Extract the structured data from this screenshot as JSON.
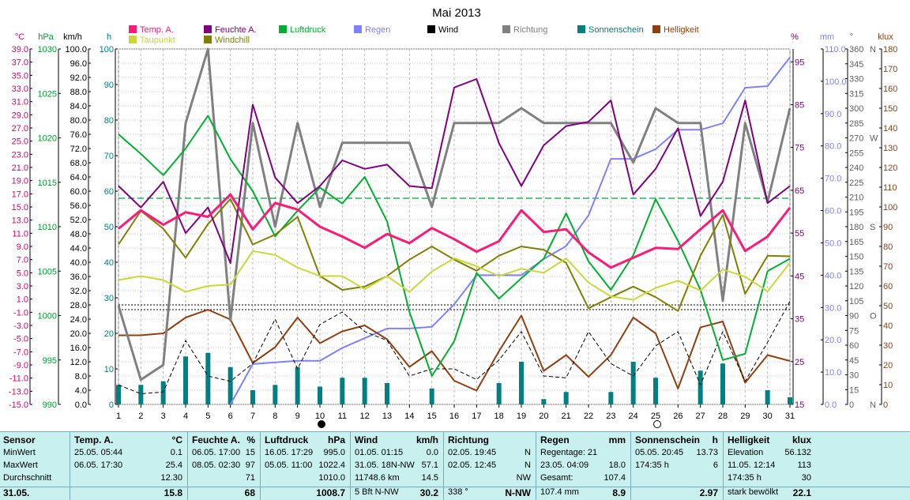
{
  "chart_data": {
    "type": "line",
    "title": "Mai 2013",
    "x": [
      1,
      2,
      3,
      4,
      5,
      6,
      7,
      8,
      9,
      10,
      11,
      12,
      13,
      14,
      15,
      16,
      17,
      18,
      19,
      20,
      21,
      22,
      23,
      24,
      25,
      26,
      27,
      28,
      29,
      30,
      31
    ],
    "xlim": [
      1,
      31
    ],
    "reference_line": 58,
    "series": [
      {
        "name": "Temp. A.",
        "color": "#ff1a75",
        "axis": "°C",
        "width": 3,
        "values": [
          11.7,
          14.5,
          12.3,
          14.2,
          13.5,
          16.9,
          11.6,
          15.6,
          14.6,
          12.0,
          10.5,
          8.8,
          10.9,
          9.5,
          11.8,
          10.1,
          8.2,
          9.8,
          14.5,
          11.2,
          11.6,
          8.1,
          5.8,
          7.3,
          8.8,
          8.6,
          11.6,
          14.5,
          8.3,
          10.5,
          14.9
        ]
      },
      {
        "name": "Feuchte A.",
        "color": "#800080",
        "axis": "%",
        "width": 2,
        "values": [
          66,
          61,
          67,
          55,
          61,
          48,
          85,
          68,
          62,
          66,
          72,
          70,
          71,
          66,
          65.5,
          89,
          91,
          76,
          66,
          75.5,
          80,
          81,
          86,
          64,
          70,
          79.5,
          59,
          67,
          86,
          62,
          66
        ]
      },
      {
        "name": "Luftdruck",
        "color": "#00b030",
        "axis": "hPa",
        "width": 2,
        "values": [
          1020.4,
          1018.2,
          1015.8,
          1018.8,
          1022.5,
          1017.6,
          1014.0,
          1008.9,
          1011.8,
          1014.4,
          1012.6,
          1015.6,
          1010.6,
          1000.4,
          993.2,
          997.1,
          1004.8,
          1001.9,
          1004.2,
          1006.4,
          1011.5,
          1006.1,
          1002.9,
          1006.8,
          1013.1,
          1008.4,
          1002.9,
          995.0,
          995.7,
          1005.0,
          1006.4
        ]
      },
      {
        "name": "Regen",
        "color": "#8080ff",
        "axis": "mm",
        "width": 2,
        "values": [
          null,
          null,
          null,
          null,
          null,
          0,
          12.5,
          13,
          13.5,
          13.5,
          17.5,
          20.5,
          23.5,
          23.5,
          24,
          31,
          40,
          40,
          40,
          45,
          49,
          58.5,
          76,
          76,
          79,
          85,
          85,
          87,
          98,
          98.5,
          107.4
        ]
      },
      {
        "name": "Richtung",
        "color": "#808080",
        "axis": "°",
        "width": 3,
        "values": [
          100,
          25,
          40,
          285,
          360,
          85,
          285,
          180,
          285,
          200,
          265,
          265,
          265,
          265,
          200,
          285,
          285,
          285,
          300,
          285,
          285,
          285,
          285,
          245,
          300,
          285,
          285,
          105,
          285,
          205,
          300
        ]
      },
      {
        "name": "Taupunkt",
        "color": "#c8d838",
        "axis": "°C",
        "width": 2,
        "values": [
          3.9,
          4.5,
          3.9,
          2.1,
          3.0,
          3.2,
          8.3,
          7.7,
          5.8,
          4.5,
          4.5,
          2.5,
          4.5,
          2.1,
          5.2,
          7.2,
          6.0,
          4.5,
          5.6,
          5.0,
          7.2,
          3.5,
          1.4,
          0.9,
          2.7,
          3.8,
          2.3,
          5.5,
          4.4,
          2.2,
          6.5
        ]
      },
      {
        "name": "Windchill",
        "color": "#808000",
        "axis": "°C",
        "width": 2,
        "values": [
          9.3,
          14.4,
          11.7,
          7.3,
          12.4,
          16.2,
          9.3,
          10.8,
          13.5,
          4.5,
          2.4,
          2.9,
          4.5,
          7.0,
          9.0,
          7.0,
          5.3,
          7.6,
          9.0,
          8.5,
          6.5,
          -0.4,
          1.3,
          2.9,
          1.3,
          -0.8,
          7.6,
          13.8,
          1.8,
          7.6,
          7.5
        ]
      },
      {
        "name": "Wind",
        "color": "#000000",
        "axis": "km/h",
        "width": 1,
        "dash": "5,3",
        "values": [
          5.5,
          3.0,
          3.5,
          18.0,
          8.0,
          6.5,
          11.5,
          24.0,
          10.0,
          22.5,
          26.0,
          20.5,
          18.0,
          8.0,
          10.0,
          10.0,
          7.0,
          12.5,
          20.5,
          8.0,
          7.5,
          20.5,
          11.5,
          8.0,
          16.5,
          20.5,
          5.5,
          20.5,
          6.5,
          17.5,
          29.0
        ]
      },
      {
        "name": "Helligkeit",
        "color": "#904010",
        "axis": "klux",
        "width": 2,
        "values": [
          35,
          35,
          36,
          44,
          48,
          43,
          21,
          29,
          44,
          31,
          37,
          40,
          33,
          19,
          27,
          12,
          7,
          27,
          45,
          17,
          25,
          14,
          25,
          44,
          36,
          8,
          39,
          42,
          11,
          25,
          22
        ]
      },
      {
        "name": "Sonnenschein",
        "color": "#008080",
        "axis": "h",
        "type": "bar",
        "values": [
          5.5,
          5.5,
          6.5,
          13.5,
          14.5,
          10.5,
          4.0,
          5.5,
          10.5,
          5.0,
          7.5,
          7.5,
          6.0,
          0,
          4.5,
          0,
          0,
          6.0,
          12.0,
          1.5,
          3.5,
          0,
          3.5,
          12.0,
          7.5,
          0,
          9.5,
          11.5,
          0,
          4.0,
          2.0
        ]
      }
    ],
    "axes": {
      "temp": {
        "label": "°C",
        "min": -15,
        "max": 39,
        "ticks": [
          "39.0",
          "37.0",
          "35.0",
          "33.0",
          "31.0",
          "29.0",
          "27.0",
          "25.0",
          "23.0",
          "21.0",
          "19.0",
          "17.0",
          "15.0",
          "13.0",
          "11.0",
          "9.0",
          "7.0",
          "5.0",
          "3.0",
          "1.0",
          "-1.0",
          "-3.0",
          "-5.0",
          "-7.0",
          "-9.0",
          "-11.0",
          "-13.0",
          "-15.0"
        ]
      },
      "hpa": {
        "label": "hPa",
        "min": 990,
        "max": 1030,
        "ticks": [
          "1030",
          "1025",
          "1020",
          "1015",
          "1010",
          "1005",
          "1000",
          "995",
          "990"
        ]
      },
      "kmh": {
        "label": "km/h",
        "min": 0,
        "max": 100,
        "ticks": [
          "100.0",
          "96.0",
          "92.0",
          "88.0",
          "84.0",
          "80.0",
          "76.0",
          "72.0",
          "68.0",
          "64.0",
          "60.0",
          "56.0",
          "52.0",
          "48.0",
          "44.0",
          "40.0",
          "36.0",
          "32.0",
          "28.0",
          "24.0",
          "20.0",
          "16.0",
          "12.0",
          "8.0",
          "4.0",
          "0.0"
        ]
      },
      "h": {
        "label": "h",
        "min": 0,
        "max": 100,
        "ticks": [
          "100",
          "90",
          "80",
          "70",
          "60",
          "50",
          "40",
          "30",
          "20",
          "10",
          "0"
        ]
      },
      "pct": {
        "label": "%",
        "min": 15,
        "max": 98,
        "ticks": [
          "95",
          "85",
          "75",
          "65",
          "55",
          "45",
          "35",
          "25",
          "15"
        ]
      },
      "mm": {
        "label": "mm",
        "min": 0,
        "max": 110,
        "ticks": [
          "110.0",
          "100.0",
          "90.0",
          "80.0",
          "70.0",
          "60.0",
          "50.0",
          "40.0",
          "30.0",
          "20.0",
          "10.0",
          "0.0"
        ]
      },
      "deg": {
        "label": "°",
        "min": 0,
        "max": 360,
        "ticks": [
          "360",
          "345",
          "330",
          "315",
          "300",
          "285",
          "270",
          "255",
          "240",
          "225",
          "210",
          "195",
          "180",
          "165",
          "150",
          "135",
          "120",
          "105",
          "90",
          "75",
          "60",
          "45",
          "30",
          "15",
          "0"
        ],
        "dir_labels": {
          "360": "N",
          "270": "W",
          "180": "S",
          "90": "O",
          "0": "N"
        }
      },
      "klux": {
        "label": "klux",
        "min": 0,
        "max": 180,
        "ticks": [
          "180",
          "170",
          "160",
          "150",
          "140",
          "130",
          "120",
          "110",
          "100",
          "90",
          "80",
          "70",
          "60",
          "50",
          "40",
          "30",
          "20",
          "10",
          "0"
        ]
      }
    },
    "x_ticks": [
      "1",
      "2",
      "3",
      "4",
      "5",
      "6",
      "7",
      "8",
      "9",
      "10",
      "11",
      "12",
      "13",
      "14",
      "15",
      "16",
      "17",
      "18",
      "19",
      "20",
      "21",
      "22",
      "23",
      "24",
      "25",
      "26",
      "27",
      "28",
      "29",
      "30",
      "31"
    ],
    "moon_phases": {
      "10": "new",
      "25": "full"
    },
    "legend": [
      {
        "label": "Temp. A.",
        "color": "#ff1a75"
      },
      {
        "label": "Feuchte A.",
        "color": "#800080"
      },
      {
        "label": "Luftdruck",
        "color": "#00b030"
      },
      {
        "label": "Regen",
        "color": "#8080ff"
      },
      {
        "label": "Wind",
        "color": "#000000"
      },
      {
        "label": "Richtung",
        "color": "#808080"
      },
      {
        "label": "Sonnenschein",
        "color": "#008080"
      },
      {
        "label": "Helligkeit",
        "color": "#904010"
      },
      {
        "label": "Taupunkt",
        "color": "#c8d838"
      },
      {
        "label": "Windchill",
        "color": "#808000"
      }
    ],
    "grid": true,
    "legend_position": "top"
  },
  "stats": {
    "row_labels": [
      "Sensor",
      "MinWert",
      "MaxWert",
      "Durchschnitt",
      "31.05."
    ],
    "sections": [
      {
        "title": "Temp. A.",
        "unit": "°C",
        "rows": [
          [
            "25.05.  05:44",
            "0.1"
          ],
          [
            "06.05.  17:30",
            "25.4"
          ],
          [
            "",
            "12.30"
          ]
        ],
        "last": "15.8"
      },
      {
        "title": "Feuchte A.",
        "unit": "%",
        "rows": [
          [
            "06.05.  17:00",
            "15"
          ],
          [
            "08.05.  02:30",
            "97"
          ],
          [
            "",
            "71"
          ]
        ],
        "last": "68"
      },
      {
        "title": "Luftdruck",
        "unit": "hPa",
        "rows": [
          [
            "16.05.  17:29",
            "995.0"
          ],
          [
            "05.05.  11:00",
            "1022.4"
          ],
          [
            "",
            "1010.0"
          ]
        ],
        "last": "1008.7"
      },
      {
        "title": "Wind",
        "unit": "km/h",
        "rows": [
          [
            "01.05.  01:15",
            "0.0"
          ],
          [
            "31.05.  18N-NW",
            "57.1"
          ],
          [
            "11748.6 km",
            "14.5"
          ]
        ],
        "last": "30.2",
        "last_left": "5 Bft N-NW"
      },
      {
        "title": "Richtung",
        "unit": "",
        "rows": [
          [
            "02.05.  19:45",
            "N"
          ],
          [
            "02.05.  12:45",
            "N"
          ],
          [
            "",
            "NW"
          ]
        ],
        "last": "N-NW",
        "last_left": "338 °"
      },
      {
        "title": "Regen",
        "unit": "mm",
        "rows": [
          [
            "Regentage: 21",
            ""
          ],
          [
            "23.05.  04:09",
            "18.0"
          ],
          [
            "Gesamt:",
            "107.4"
          ]
        ],
        "last": "8.9",
        "last_left": "107.4 mm"
      },
      {
        "title": "Sonnenschein",
        "unit": "h",
        "rows": [
          [
            "05.05.  20:45",
            "13.73"
          ],
          [
            "174:35 h",
            "6"
          ],
          [
            "",
            ""
          ]
        ],
        "last": "2.97"
      },
      {
        "title": "Helligkeit",
        "unit": "klux",
        "rows": [
          [
            "Elevation",
            "56.132"
          ],
          [
            "11.05.  12:14",
            "113"
          ],
          [
            "174:35 h",
            "30"
          ]
        ],
        "last": "22.1",
        "last_left": "stark bewölkt"
      }
    ]
  }
}
